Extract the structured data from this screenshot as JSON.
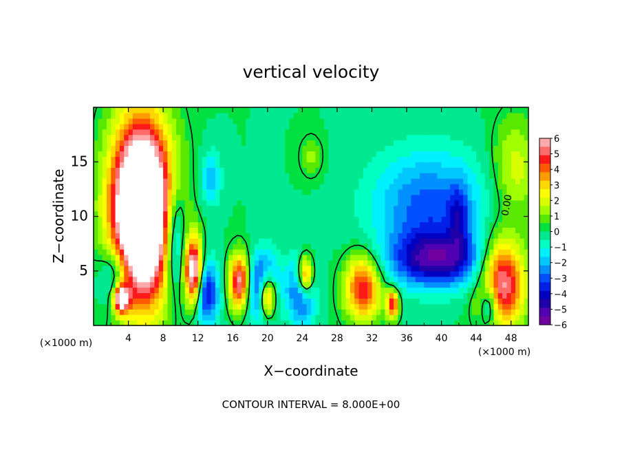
{
  "chart_data": {
    "type": "heatmap",
    "title": "vertical velocity",
    "xlabel": "X−coordinate",
    "ylabel": "Z−coordinate",
    "x_unit_left": "(×1000 m)",
    "x_unit_right": "(×1000 m)",
    "xlim": [
      0,
      50
    ],
    "ylim": [
      0,
      20
    ],
    "x_ticks": [
      4,
      8,
      12,
      16,
      20,
      24,
      28,
      32,
      36,
      40,
      44,
      48
    ],
    "x_tick_labels": [
      "4",
      "8",
      "12",
      "16",
      "20",
      "24",
      "28",
      "32",
      "36",
      "40",
      "44",
      "48"
    ],
    "y_ticks": [
      5,
      10,
      15
    ],
    "y_tick_labels": [
      "5",
      "10",
      "15"
    ],
    "colorbar": {
      "min": -6,
      "max": 6,
      "tick_labels": [
        "6",
        "5",
        "4",
        "3",
        "2",
        "1",
        "0",
        "−1",
        "−2",
        "−3",
        "−4",
        "−5",
        "−6"
      ],
      "colors": [
        "#ffaaaa",
        "#ff6a6a",
        "#ff1a1a",
        "#ff5a00",
        "#ff9d00",
        "#ffd700",
        "#ffff00",
        "#d8ff00",
        "#a0ff00",
        "#59e800",
        "#00e040",
        "#00e890",
        "#00ffc0",
        "#00f0ff",
        "#00c8ff",
        "#0090ff",
        "#0050ff",
        "#0020e8",
        "#0000c0",
        "#2000a8",
        "#5000b0",
        "#7000a0"
      ]
    },
    "annotations": [
      "0.00"
    ],
    "footnote": "CONTOUR INTERVAL = 8.000E+00",
    "features": [
      {
        "kind": "updraft",
        "x": 5.5,
        "z": 10.5,
        "rx": 3.4,
        "rz": 8.0,
        "amp": 12
      },
      {
        "kind": "updraft",
        "x": 3.2,
        "z": 2.5,
        "rx": 0.9,
        "rz": 1.3,
        "amp": 7
      },
      {
        "kind": "updraft",
        "x": 11.5,
        "z": 5.0,
        "rx": 1.0,
        "rz": 3.0,
        "amp": 7
      },
      {
        "kind": "updraft",
        "x": 16.8,
        "z": 4.0,
        "rx": 1.2,
        "rz": 2.5,
        "amp": 6
      },
      {
        "kind": "updraft",
        "x": 20.0,
        "z": 2.8,
        "rx": 1.0,
        "rz": 2.0,
        "amp": 7
      },
      {
        "kind": "updraft",
        "x": 24.3,
        "z": 4.5,
        "rx": 1.0,
        "rz": 2.0,
        "amp": 7
      },
      {
        "kind": "updraft",
        "x": 31.0,
        "z": 3.5,
        "rx": 2.1,
        "rz": 3.0,
        "amp": 5
      },
      {
        "kind": "updraft",
        "x": 34.4,
        "z": 2.0,
        "rx": 0.7,
        "rz": 1.3,
        "amp": 5
      },
      {
        "kind": "updraft",
        "x": 47.0,
        "z": 4.0,
        "rx": 2.6,
        "rz": 4.0,
        "amp": 6
      },
      {
        "kind": "updraft",
        "x": 48.5,
        "z": 14.5,
        "rx": 2.6,
        "rz": 4.5,
        "amp": 2
      },
      {
        "kind": "updraft",
        "x": 25.0,
        "z": 15.5,
        "rx": 1.2,
        "rz": 1.8,
        "amp": 1.2
      },
      {
        "kind": "downdraft",
        "x": 13.0,
        "z": 3.0,
        "rx": 1.4,
        "rz": 3.0,
        "amp": -4
      },
      {
        "kind": "downdraft",
        "x": 19.5,
        "z": 3.5,
        "rx": 1.8,
        "rz": 3.0,
        "amp": -5
      },
      {
        "kind": "downdraft",
        "x": 24.0,
        "z": 3.5,
        "rx": 1.5,
        "rz": 3.0,
        "amp": -5
      },
      {
        "kind": "downdraft",
        "x": 38.5,
        "z": 11.0,
        "rx": 6.5,
        "rz": 5.0,
        "amp": -3
      },
      {
        "kind": "downdraft",
        "x": 39.5,
        "z": 6.0,
        "rx": 5.5,
        "rz": 2.5,
        "amp": -4.5
      },
      {
        "kind": "downdraft",
        "x": 42.0,
        "z": 10.0,
        "rx": 1.2,
        "rz": 3.0,
        "amp": -2
      },
      {
        "kind": "downdraft",
        "x": 13.5,
        "z": 13.5,
        "rx": 1.2,
        "rz": 2.5,
        "amp": -2
      },
      {
        "kind": "downdraft",
        "x": 2.5,
        "z": 4.5,
        "rx": 1.8,
        "rz": 3.0,
        "amp": -3
      },
      {
        "kind": "downdraft",
        "x": 9.3,
        "z": 8.0,
        "rx": 1.2,
        "rz": 5.0,
        "amp": -3.5
      },
      {
        "kind": "downdraft",
        "x": 45.5,
        "z": 2.0,
        "rx": 1.0,
        "rz": 2.0,
        "amp": -3
      }
    ]
  }
}
